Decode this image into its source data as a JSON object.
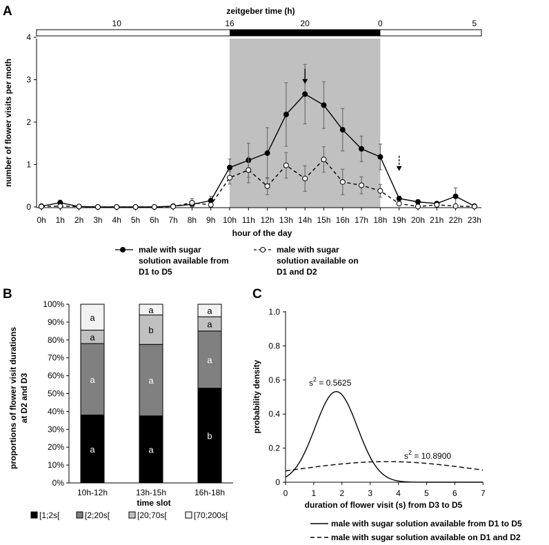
{
  "panel_labels": {
    "a": "A",
    "b": "B",
    "c": "C"
  },
  "chart_data": [
    {
      "id": "A",
      "type": "line",
      "top_axis": {
        "title": "zeitgeber time (h)",
        "ticks": [
          {
            "label": "10",
            "hour": 4
          },
          {
            "label": "16",
            "hour": 10
          },
          {
            "label": "20",
            "hour": 14
          },
          {
            "label": "0",
            "hour": 18
          },
          {
            "label": "5",
            "hour": 23
          }
        ],
        "dark_phase": [
          10,
          18
        ]
      },
      "x_categories": [
        "0h",
        "1h",
        "2h",
        "3h",
        "4h",
        "5h",
        "6h",
        "7h",
        "8h",
        "9h",
        "10h",
        "11h",
        "12h",
        "13h",
        "14h",
        "15h",
        "16h",
        "17h",
        "18h",
        "19h",
        "20h",
        "21h",
        "22h",
        "23h"
      ],
      "xlabel": "hour of the day",
      "ylabel": "number of flower visits per moth",
      "ylim": [
        0,
        4
      ],
      "yticks": [
        "0",
        "1",
        "2",
        "3",
        "4"
      ],
      "shaded_region": [
        10,
        18
      ],
      "series": [
        {
          "name": "male with sugar solution available from D1 to D5",
          "legend_lines": [
            "male with sugar",
            "solution available from",
            "D1 to D5"
          ],
          "style": "solid-filled",
          "values": [
            0.02,
            0.1,
            0.01,
            0,
            0,
            0,
            0,
            0.02,
            0.06,
            0.15,
            0.93,
            1.1,
            1.27,
            2.18,
            2.66,
            2.4,
            1.82,
            1.37,
            1.18,
            0.2,
            0.12,
            0.08,
            0.25,
            0.02
          ],
          "err": [
            0.03,
            0.06,
            0.02,
            0,
            0,
            0,
            0,
            0.04,
            0.07,
            0.1,
            0.2,
            0.4,
            0.6,
            0.75,
            0.7,
            0.55,
            0.5,
            0.3,
            0.3,
            0.05,
            0.05,
            0.05,
            0.2,
            0.03
          ]
        },
        {
          "name": "male with sugar solution available on D1 and D2",
          "legend_lines": [
            "male with sugar",
            "solution available on",
            "D1 and D2"
          ],
          "style": "dashed-open",
          "values": [
            0.01,
            0.02,
            0.01,
            0,
            0,
            0,
            0,
            0.01,
            0.1,
            0.05,
            0.69,
            0.87,
            0.49,
            0.98,
            0.67,
            1.12,
            0.59,
            0.51,
            0.38,
            0.08,
            0.01,
            0.05,
            0.02,
            0.01
          ],
          "err": [
            0.02,
            0.02,
            0.01,
            0,
            0,
            0,
            0,
            0.03,
            0.1,
            0.05,
            0.15,
            0.3,
            0.2,
            0.3,
            0.3,
            0.3,
            0.3,
            0.2,
            0.15,
            0.05,
            0.02,
            0.04,
            0.02,
            0.02
          ]
        }
      ],
      "arrows": [
        {
          "hour": 14,
          "value": 2.9,
          "style": "solid"
        },
        {
          "hour": 19,
          "value": 0.85,
          "style": "dashed"
        }
      ]
    },
    {
      "id": "B",
      "type": "bar",
      "stacked": true,
      "categories": [
        "10h-12h",
        "13h-15h",
        "16h-18h"
      ],
      "xlabel": "time slot",
      "ylabel_lines": [
        "proportions of flower visit durations",
        "at D2 and D3"
      ],
      "ylim": [
        0,
        100
      ],
      "yticks": [
        "0%",
        "10%",
        "20%",
        "30%",
        "40%",
        "50%",
        "60%",
        "70%",
        "80%",
        "90%",
        "100%"
      ],
      "series": [
        {
          "name": "[1;2s[",
          "color": "#000000",
          "values": [
            38,
            37.5,
            53
          ],
          "letters": [
            "a",
            "a",
            "b"
          ]
        },
        {
          "name": "[2;20s[",
          "color": "#808080",
          "values": [
            40,
            40,
            32
          ],
          "letters": [
            "a",
            "a",
            "a"
          ]
        },
        {
          "name": "[20;70s[",
          "color": "#c0c0c0",
          "values": [
            7.5,
            16.5,
            8
          ],
          "letters": [
            "a",
            "b",
            "a"
          ]
        },
        {
          "name": "[70;200s[",
          "color": "#f2f2f2",
          "values": [
            14.5,
            6,
            7
          ],
          "letters": [
            "a",
            "a",
            "a"
          ]
        }
      ]
    },
    {
      "id": "C",
      "type": "line",
      "xlabel": "duration of flower visit (s) from D3 to D5",
      "ylabel": "probability density",
      "xlim": [
        0,
        7
      ],
      "ylim": [
        0,
        1
      ],
      "xticks": [
        "0",
        "1",
        "2",
        "3",
        "4",
        "5",
        "6",
        "7"
      ],
      "yticks": [
        "0",
        "0.2",
        "0.4",
        "0.6",
        "0.8",
        "1.0"
      ],
      "series": [
        {
          "name": "male with sugar solution available from D1 to D5",
          "style": "solid",
          "mean": 1.8,
          "variance": 0.5625,
          "annotation_base": "s",
          "annotation_value": " = 0.5625"
        },
        {
          "name": "male with sugar solution available on D1 and D2",
          "style": "dashed",
          "mean": 3.6,
          "variance": 10.89,
          "annotation_base": "s",
          "annotation_value": " = 10.8900"
        }
      ]
    }
  ]
}
